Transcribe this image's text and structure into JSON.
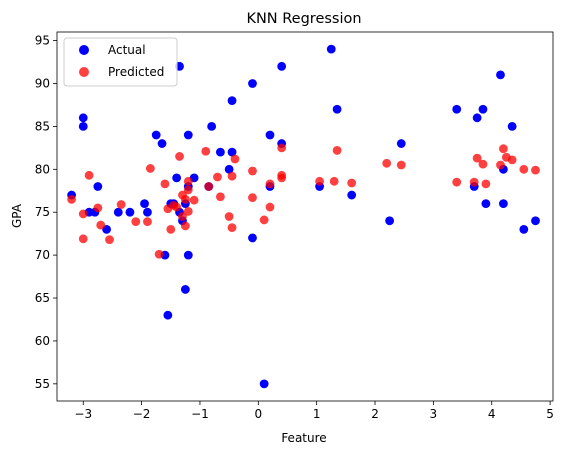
{
  "chart_data": {
    "type": "scatter",
    "title": "KNN Regression",
    "xlabel": "Feature",
    "ylabel": "GPA",
    "xlim": [
      -3.45,
      5.05
    ],
    "ylim": [
      53,
      96
    ],
    "xticks": [
      -3,
      -2,
      -1,
      0,
      1,
      2,
      3,
      4,
      5
    ],
    "yticks": [
      55,
      60,
      65,
      70,
      75,
      80,
      85,
      90,
      95
    ],
    "grid": false,
    "legend_position": "top-left",
    "series": [
      {
        "name": "Actual",
        "color": "#0000ff",
        "opacity": 1.0,
        "points": [
          [
            -3.2,
            77
          ],
          [
            -3.0,
            85
          ],
          [
            -3.0,
            86
          ],
          [
            -2.9,
            75
          ],
          [
            -2.8,
            75
          ],
          [
            -2.75,
            78
          ],
          [
            -2.6,
            73
          ],
          [
            -2.4,
            75
          ],
          [
            -2.2,
            75
          ],
          [
            -1.95,
            76
          ],
          [
            -1.9,
            75
          ],
          [
            -1.75,
            84
          ],
          [
            -1.65,
            83
          ],
          [
            -1.6,
            70
          ],
          [
            -1.55,
            63
          ],
          [
            -1.5,
            76
          ],
          [
            -1.45,
            76
          ],
          [
            -1.4,
            79
          ],
          [
            -1.35,
            92
          ],
          [
            -1.35,
            75
          ],
          [
            -1.3,
            74
          ],
          [
            -1.25,
            66
          ],
          [
            -1.25,
            76
          ],
          [
            -1.2,
            78
          ],
          [
            -1.2,
            84
          ],
          [
            -1.2,
            70
          ],
          [
            -1.1,
            79
          ],
          [
            -0.85,
            78
          ],
          [
            -0.8,
            85
          ],
          [
            -0.65,
            82
          ],
          [
            -0.5,
            80
          ],
          [
            -0.45,
            88
          ],
          [
            -0.45,
            82
          ],
          [
            -0.1,
            90
          ],
          [
            -0.1,
            72
          ],
          [
            0.1,
            55
          ],
          [
            0.2,
            78
          ],
          [
            0.2,
            84
          ],
          [
            0.4,
            92
          ],
          [
            0.4,
            83
          ],
          [
            1.05,
            78
          ],
          [
            1.25,
            94
          ],
          [
            1.35,
            87
          ],
          [
            1.6,
            77
          ],
          [
            2.25,
            74
          ],
          [
            2.45,
            83
          ],
          [
            3.4,
            87
          ],
          [
            3.7,
            78
          ],
          [
            3.75,
            86
          ],
          [
            3.85,
            87
          ],
          [
            3.9,
            76
          ],
          [
            4.15,
            91
          ],
          [
            4.2,
            80
          ],
          [
            4.2,
            76
          ],
          [
            4.35,
            85
          ],
          [
            4.55,
            73
          ],
          [
            4.75,
            74
          ]
        ]
      },
      {
        "name": "Predicted",
        "color": "#ff0000",
        "opacity": 0.75,
        "points": [
          [
            -3.2,
            76.5
          ],
          [
            -3.0,
            74.8
          ],
          [
            -3.0,
            71.9
          ],
          [
            -2.9,
            79.3
          ],
          [
            -2.75,
            75.5
          ],
          [
            -2.7,
            73.5
          ],
          [
            -2.55,
            71.8
          ],
          [
            -2.35,
            75.9
          ],
          [
            -2.1,
            73.9
          ],
          [
            -1.9,
            73.9
          ],
          [
            -1.85,
            80.1
          ],
          [
            -1.7,
            70.1
          ],
          [
            -1.6,
            78.3
          ],
          [
            -1.55,
            75.4
          ],
          [
            -1.5,
            73
          ],
          [
            -1.45,
            75.8
          ],
          [
            -1.4,
            75.6
          ],
          [
            -1.35,
            81.5
          ],
          [
            -1.3,
            77
          ],
          [
            -1.3,
            74.5
          ],
          [
            -1.25,
            73.4
          ],
          [
            -1.25,
            76.5
          ],
          [
            -1.2,
            75.1
          ],
          [
            -1.2,
            77.6
          ],
          [
            -1.2,
            78.6
          ],
          [
            -1.1,
            76.4
          ],
          [
            -0.9,
            82.1
          ],
          [
            -0.85,
            78
          ],
          [
            -0.7,
            79.1
          ],
          [
            -0.65,
            76.8
          ],
          [
            -0.5,
            74.5
          ],
          [
            -0.45,
            73.2
          ],
          [
            -0.45,
            79.2
          ],
          [
            -0.4,
            81.2
          ],
          [
            -0.1,
            79.8
          ],
          [
            -0.1,
            76.7
          ],
          [
            0.1,
            74.1
          ],
          [
            0.2,
            75.6
          ],
          [
            0.2,
            78.3
          ],
          [
            0.4,
            79.3
          ],
          [
            0.4,
            82.5
          ],
          [
            0.4,
            79
          ],
          [
            1.05,
            78.6
          ],
          [
            1.3,
            78.6
          ],
          [
            1.35,
            82.2
          ],
          [
            1.6,
            78.4
          ],
          [
            2.2,
            80.7
          ],
          [
            2.45,
            80.5
          ],
          [
            3.4,
            78.5
          ],
          [
            3.7,
            78.5
          ],
          [
            3.75,
            81.3
          ],
          [
            3.85,
            80.6
          ],
          [
            3.9,
            78.3
          ],
          [
            4.15,
            80.5
          ],
          [
            4.2,
            82.4
          ],
          [
            4.25,
            81.4
          ],
          [
            4.35,
            81.1
          ],
          [
            4.55,
            80
          ],
          [
            4.75,
            79.9
          ]
        ]
      }
    ]
  }
}
